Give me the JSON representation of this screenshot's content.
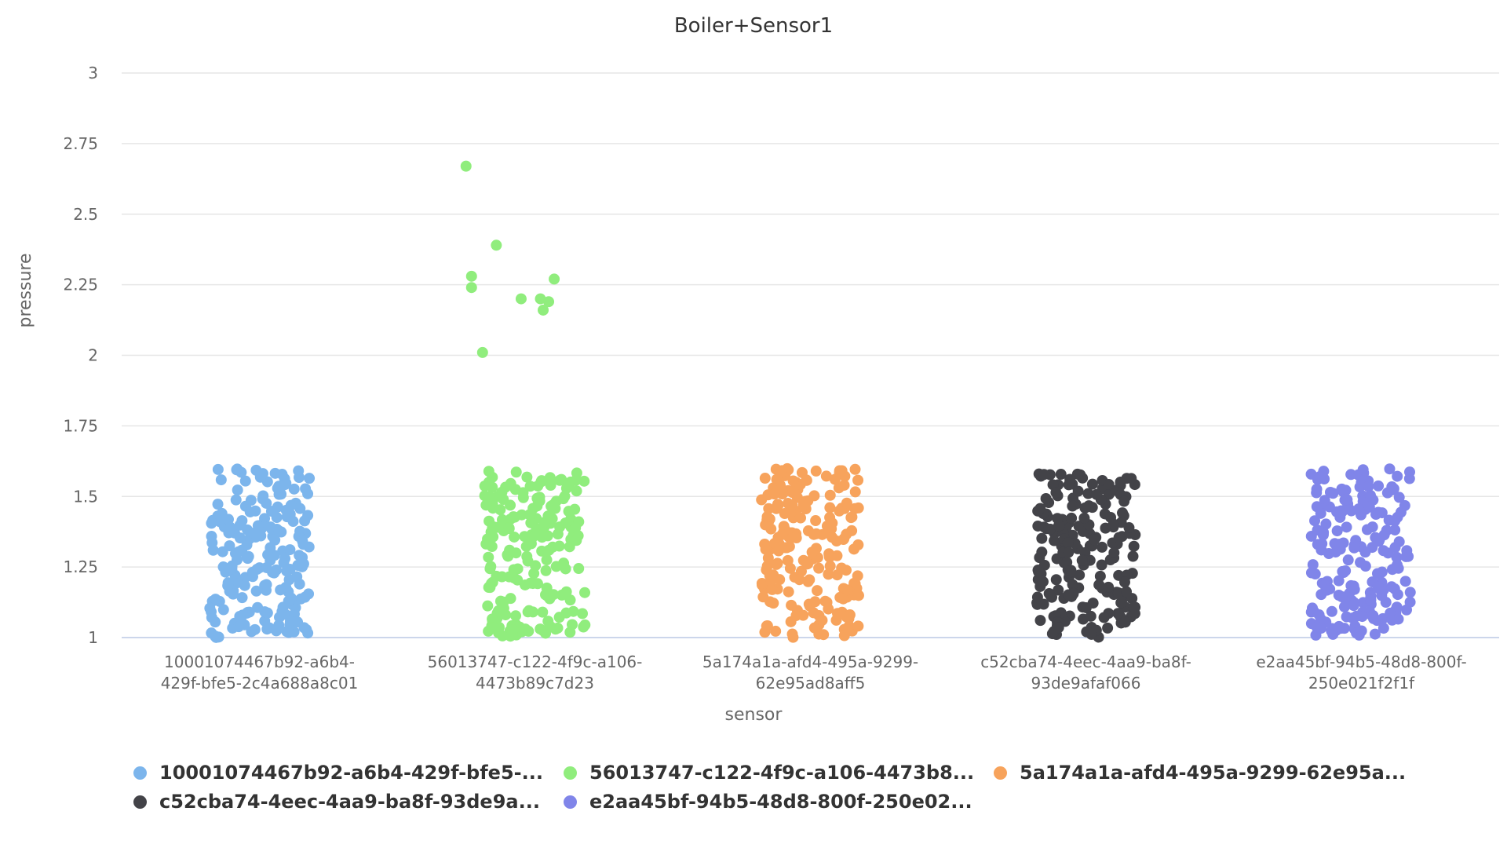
{
  "chart_data": {
    "type": "scatter",
    "title": "Boiler+Sensor1",
    "xlabel": "sensor",
    "ylabel": "pressure",
    "ylim": [
      1,
      3
    ],
    "yticks": [
      "1",
      "1.25",
      "1.5",
      "1.75",
      "2",
      "2.25",
      "2.5",
      "2.75",
      "3"
    ],
    "grid": true,
    "legend_position": "bottom",
    "categories": [
      [
        "10001074467b92-a6b4-",
        "429f-bfe5-2c4a688a8c01"
      ],
      [
        "56013747-c122-4f9c-a106-",
        "4473b89c7d23"
      ],
      [
        "5a174a1a-afd4-495a-9299-",
        "62e95ad8aff5"
      ],
      [
        "c52cba74-4eec-4aa9-ba8f-",
        "93de9afaf066"
      ],
      [
        "e2aa45bf-94b5-48d8-800f-",
        "250e021f2f1f"
      ]
    ],
    "series": [
      {
        "name": "10001074467b92-a6b4-429f-bfe5-...",
        "color": "#7cb5ec",
        "x_index": 0,
        "n_points": 200,
        "range": [
          1.0,
          1.6
        ],
        "seed": 11,
        "outliers": []
      },
      {
        "name": "56013747-c122-4f9c-a106-4473b8...",
        "color": "#90ed7d",
        "x_index": 1,
        "n_points": 200,
        "range": [
          1.0,
          1.59
        ],
        "seed": 23,
        "outliers": [
          {
            "offset": -0.25,
            "y": 2.67
          },
          {
            "offset": -0.14,
            "y": 2.39
          },
          {
            "offset": -0.23,
            "y": 2.28
          },
          {
            "offset": -0.23,
            "y": 2.24
          },
          {
            "offset": 0.07,
            "y": 2.27
          },
          {
            "offset": -0.05,
            "y": 2.2
          },
          {
            "offset": 0.02,
            "y": 2.2
          },
          {
            "offset": 0.05,
            "y": 2.19
          },
          {
            "offset": 0.03,
            "y": 2.16
          },
          {
            "offset": -0.19,
            "y": 2.01
          }
        ]
      },
      {
        "name": "5a174a1a-afd4-495a-9299-62e95a...",
        "color": "#f7a35c",
        "x_index": 2,
        "n_points": 200,
        "range": [
          1.0,
          1.6
        ],
        "seed": 37,
        "outliers": []
      },
      {
        "name": "c52cba74-4eec-4aa9-ba8f-93de9a...",
        "color": "#434348",
        "x_index": 3,
        "n_points": 200,
        "range": [
          1.0,
          1.58
        ],
        "seed": 41,
        "outliers": []
      },
      {
        "name": "e2aa45bf-94b5-48d8-800f-250e02...",
        "color": "#8085e9",
        "x_index": 4,
        "n_points": 200,
        "range": [
          1.0,
          1.6
        ],
        "seed": 59,
        "outliers": []
      }
    ]
  }
}
